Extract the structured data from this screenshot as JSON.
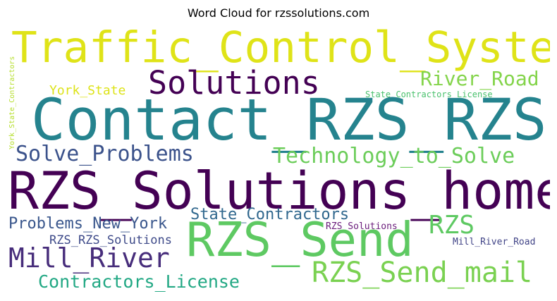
{
  "title": "Word Cloud for rzssolutions.com",
  "words": [
    {
      "text": "Traffic_Control_Systems",
      "color": "#dfe318"
    },
    {
      "text": "Solutions",
      "color": "#440154"
    },
    {
      "text": "River_Road",
      "color": "#84d44b"
    },
    {
      "text": "York_State",
      "color": "#dde318"
    },
    {
      "text": "State_Contractors_License",
      "color": "#4ac16d"
    },
    {
      "text": "York_State_Contractors",
      "color": "#b5de2b"
    },
    {
      "text": "Contact_RZS_RZS",
      "color": "#25838e"
    },
    {
      "text": "Solve_Problems",
      "color": "#3b528b"
    },
    {
      "text": "Technology_to_Solve",
      "color": "#6ccd5a"
    },
    {
      "text": "RZS_Solutions_home",
      "color": "#440154"
    },
    {
      "text": "State_Contractors",
      "color": "#31688e"
    },
    {
      "text": "Problems_New_York",
      "color": "#39568c"
    },
    {
      "text": "RZS_Solutions",
      "color": "#6a1c7b"
    },
    {
      "text": "RZS",
      "color": "#5ec962"
    },
    {
      "text": "RZS_Send",
      "color": "#5ec962"
    },
    {
      "text": "RZS_RZS_Solutions",
      "color": "#3e4a89"
    },
    {
      "text": "Mill_River_Road",
      "color": "#414487"
    },
    {
      "text": "Mill_River",
      "color": "#472d7b"
    },
    {
      "text": "RZS_Send_mail",
      "color": "#7ad151"
    },
    {
      "text": "Contractors_License",
      "color": "#22a884"
    }
  ]
}
